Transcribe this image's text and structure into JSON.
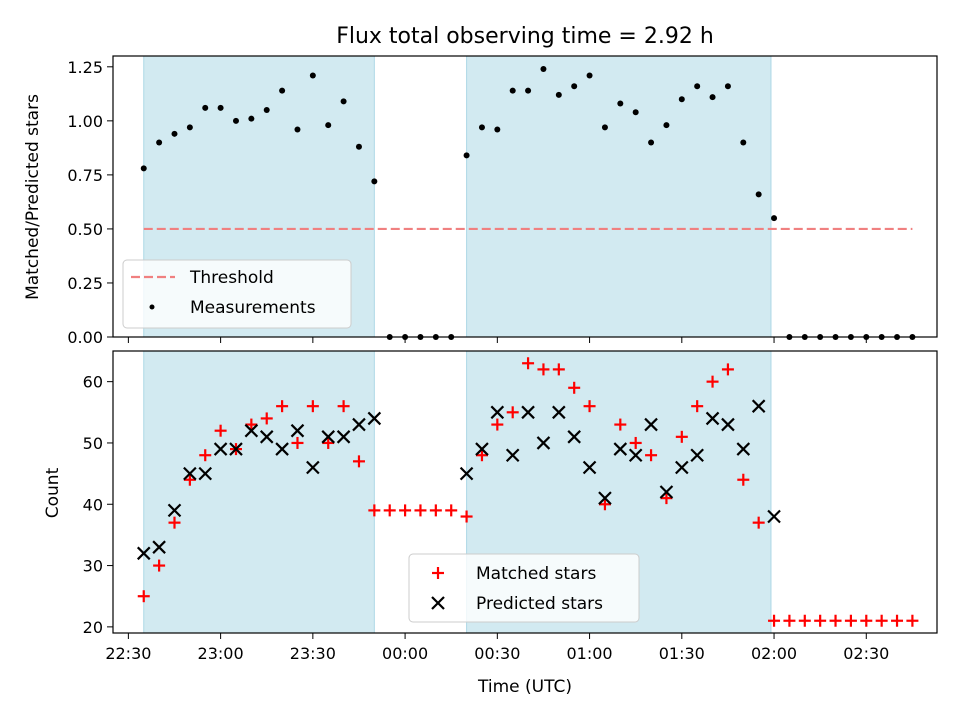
{
  "figure": {
    "title": "Flux total observing time = 2.92 h"
  },
  "colors": {
    "observing_span": "#add8e6",
    "threshold": "#f08080",
    "measurements": "#000000",
    "matched": "#ff0000",
    "predicted": "#000000"
  },
  "chart_data": [
    {
      "type": "scatter",
      "ylabel": "Matched/Predicted stars",
      "ylim": [
        0,
        1.3
      ],
      "yticks": [
        "0.00",
        "0.25",
        "0.50",
        "0.75",
        "1.00",
        "1.25"
      ],
      "ytick_values": [
        0,
        0.25,
        0.5,
        0.75,
        1.0,
        1.25
      ],
      "observing_spans": [
        [
          "22:35",
          "23:50"
        ],
        [
          "00:20",
          "01:59"
        ]
      ],
      "threshold": {
        "name": "Threshold",
        "value": 0.5,
        "x_range": [
          "22:35",
          "02:45"
        ]
      },
      "series": [
        {
          "name": "Measurements",
          "points": [
            [
              "22:35",
              0.78
            ],
            [
              "22:40",
              0.9
            ],
            [
              "22:45",
              0.94
            ],
            [
              "22:50",
              0.97
            ],
            [
              "22:55",
              1.06
            ],
            [
              "23:00",
              1.06
            ],
            [
              "23:05",
              1.0
            ],
            [
              "23:10",
              1.01
            ],
            [
              "23:15",
              1.05
            ],
            [
              "23:20",
              1.14
            ],
            [
              "23:25",
              0.96
            ],
            [
              "23:30",
              1.21
            ],
            [
              "23:35",
              0.98
            ],
            [
              "23:40",
              1.09
            ],
            [
              "23:45",
              0.88
            ],
            [
              "23:50",
              0.72
            ],
            [
              "23:55",
              0.0
            ],
            [
              "00:00",
              0.0
            ],
            [
              "00:05",
              0.0
            ],
            [
              "00:10",
              0.0
            ],
            [
              "00:15",
              0.0
            ],
            [
              "00:20",
              0.84
            ],
            [
              "00:25",
              0.97
            ],
            [
              "00:30",
              0.96
            ],
            [
              "00:35",
              1.14
            ],
            [
              "00:40",
              1.14
            ],
            [
              "00:45",
              1.24
            ],
            [
              "00:50",
              1.12
            ],
            [
              "00:55",
              1.16
            ],
            [
              "01:00",
              1.21
            ],
            [
              "01:05",
              0.97
            ],
            [
              "01:10",
              1.08
            ],
            [
              "01:15",
              1.04
            ],
            [
              "01:20",
              0.9
            ],
            [
              "01:25",
              0.98
            ],
            [
              "01:30",
              1.1
            ],
            [
              "01:35",
              1.16
            ],
            [
              "01:40",
              1.11
            ],
            [
              "01:45",
              1.16
            ],
            [
              "01:50",
              0.9
            ],
            [
              "01:55",
              0.66
            ],
            [
              "02:00",
              0.55
            ],
            [
              "02:05",
              0.0
            ],
            [
              "02:10",
              0.0
            ],
            [
              "02:15",
              0.0
            ],
            [
              "02:20",
              0.0
            ],
            [
              "02:25",
              0.0
            ],
            [
              "02:30",
              0.0
            ],
            [
              "02:35",
              0.0
            ],
            [
              "02:40",
              0.0
            ],
            [
              "02:45",
              0.0
            ]
          ]
        }
      ],
      "legend": {
        "placement": "lower-left",
        "entries": [
          "Threshold",
          "Measurements"
        ]
      },
      "grid": false
    },
    {
      "type": "scatter",
      "xlabel": "Time (UTC)",
      "ylabel": "Count",
      "ylim": [
        19,
        65
      ],
      "yticks": [
        "20",
        "30",
        "40",
        "50",
        "60"
      ],
      "ytick_values": [
        20,
        30,
        40,
        50,
        60
      ],
      "xlim": [
        "22:25",
        "02:53"
      ],
      "xticks": [
        "22:30",
        "23:00",
        "23:30",
        "00:00",
        "00:30",
        "01:00",
        "01:30",
        "02:00",
        "02:30"
      ],
      "observing_spans": [
        [
          "22:35",
          "23:50"
        ],
        [
          "00:20",
          "01:59"
        ]
      ],
      "series": [
        {
          "name": "Matched stars",
          "marker": "plus",
          "points": [
            [
              "22:35",
              25
            ],
            [
              "22:40",
              30
            ],
            [
              "22:45",
              37
            ],
            [
              "22:50",
              44
            ],
            [
              "22:55",
              48
            ],
            [
              "23:00",
              52
            ],
            [
              "23:05",
              49
            ],
            [
              "23:10",
              53
            ],
            [
              "23:15",
              54
            ],
            [
              "23:20",
              56
            ],
            [
              "23:25",
              50
            ],
            [
              "23:30",
              56
            ],
            [
              "23:35",
              50
            ],
            [
              "23:40",
              56
            ],
            [
              "23:45",
              47
            ],
            [
              "23:50",
              39
            ],
            [
              "23:55",
              39
            ],
            [
              "00:00",
              39
            ],
            [
              "00:05",
              39
            ],
            [
              "00:10",
              39
            ],
            [
              "00:15",
              39
            ],
            [
              "00:20",
              38
            ],
            [
              "00:25",
              48
            ],
            [
              "00:30",
              53
            ],
            [
              "00:35",
              55
            ],
            [
              "00:40",
              63
            ],
            [
              "00:45",
              62
            ],
            [
              "00:50",
              62
            ],
            [
              "00:55",
              59
            ],
            [
              "01:00",
              56
            ],
            [
              "01:05",
              40
            ],
            [
              "01:10",
              53
            ],
            [
              "01:15",
              50
            ],
            [
              "01:20",
              48
            ],
            [
              "01:25",
              41
            ],
            [
              "01:30",
              51
            ],
            [
              "01:35",
              56
            ],
            [
              "01:40",
              60
            ],
            [
              "01:45",
              62
            ],
            [
              "01:50",
              44
            ],
            [
              "01:55",
              37
            ],
            [
              "02:00",
              21
            ],
            [
              "02:05",
              21
            ],
            [
              "02:10",
              21
            ],
            [
              "02:15",
              21
            ],
            [
              "02:20",
              21
            ],
            [
              "02:25",
              21
            ],
            [
              "02:30",
              21
            ],
            [
              "02:35",
              21
            ],
            [
              "02:40",
              21
            ],
            [
              "02:45",
              21
            ]
          ]
        },
        {
          "name": "Predicted stars",
          "marker": "x",
          "points": [
            [
              "22:35",
              32
            ],
            [
              "22:40",
              33
            ],
            [
              "22:45",
              39
            ],
            [
              "22:50",
              45
            ],
            [
              "22:55",
              45
            ],
            [
              "23:00",
              49
            ],
            [
              "23:05",
              49
            ],
            [
              "23:10",
              52
            ],
            [
              "23:15",
              51
            ],
            [
              "23:20",
              49
            ],
            [
              "23:25",
              52
            ],
            [
              "23:30",
              46
            ],
            [
              "23:35",
              51
            ],
            [
              "23:40",
              51
            ],
            [
              "23:45",
              53
            ],
            [
              "23:50",
              54
            ],
            [
              "00:20",
              45
            ],
            [
              "00:25",
              49
            ],
            [
              "00:30",
              55
            ],
            [
              "00:35",
              48
            ],
            [
              "00:40",
              55
            ],
            [
              "00:45",
              50
            ],
            [
              "00:50",
              55
            ],
            [
              "00:55",
              51
            ],
            [
              "01:00",
              46
            ],
            [
              "01:05",
              41
            ],
            [
              "01:10",
              49
            ],
            [
              "01:15",
              48
            ],
            [
              "01:20",
              53
            ],
            [
              "01:25",
              42
            ],
            [
              "01:30",
              46
            ],
            [
              "01:35",
              48
            ],
            [
              "01:40",
              54
            ],
            [
              "01:45",
              53
            ],
            [
              "01:50",
              49
            ],
            [
              "01:55",
              56
            ],
            [
              "02:00",
              38
            ]
          ]
        }
      ],
      "legend": {
        "placement": "lower-center",
        "entries": [
          "Matched stars",
          "Predicted stars"
        ]
      },
      "grid": false
    }
  ]
}
